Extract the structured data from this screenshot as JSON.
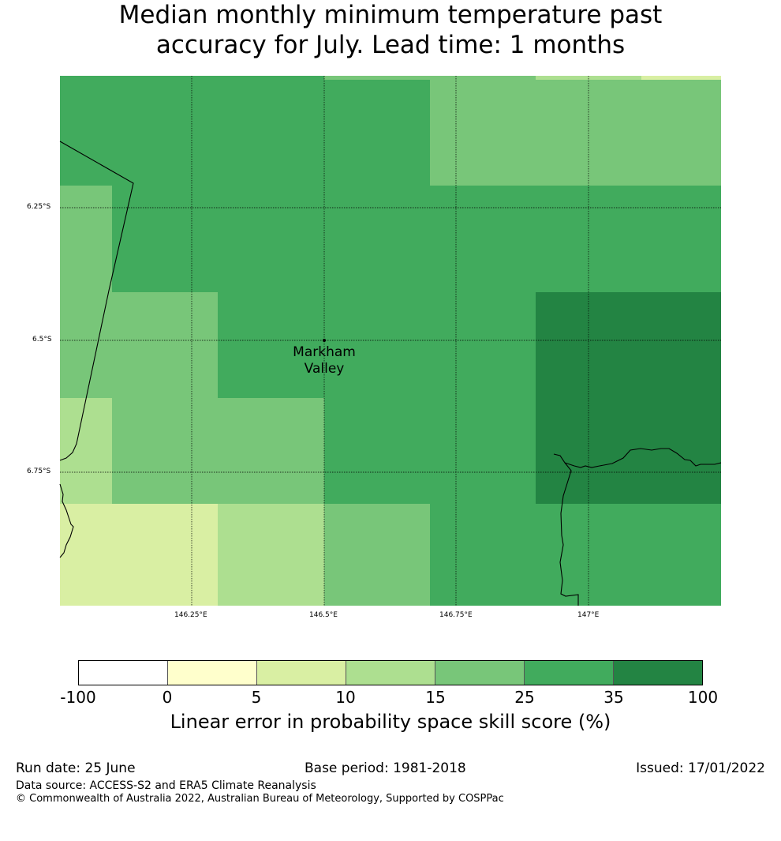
{
  "title": {
    "line1": "Median monthly minimum temperature past",
    "line2": "accuracy for July. Lead time: 1 months"
  },
  "map": {
    "lat_labels": [
      "6.25°S",
      "6.5°S",
      "6.75°S"
    ],
    "lon_labels": [
      "146.25°E",
      "146.5°E",
      "146.75°E",
      "147°E"
    ],
    "place": {
      "name_line1": "Markham",
      "name_line2": "Valley"
    },
    "grid_categories_note_colors": {
      "cat_5_10": "#d9efa3",
      "cat_10_15": "#addf90",
      "cat_15_25": "#78c679",
      "cat_25_35": "#41ab5d",
      "cat_35_100": "#238443"
    }
  },
  "colorbar": {
    "ticks": [
      "-100",
      "0",
      "5",
      "10",
      "15",
      "25",
      "35",
      "100"
    ],
    "colors": [
      "#ffffff",
      "#ffffcc",
      "#d9efa3",
      "#addf90",
      "#78c679",
      "#41ab5d",
      "#238443"
    ],
    "label": "Linear error in probability space skill score (%)"
  },
  "footer": {
    "run_date": "Run date: 25 June",
    "base_period": "Base period: 1981-2018",
    "issued": "Issued: 17/01/2022",
    "data_source": "Data source: ACCESS-S2 and ERA5 Climate Reanalysis",
    "copyright": "© Commonwealth of Australia 2022, Australian Bureau of Meteorology, Supported by COSPPac"
  }
}
